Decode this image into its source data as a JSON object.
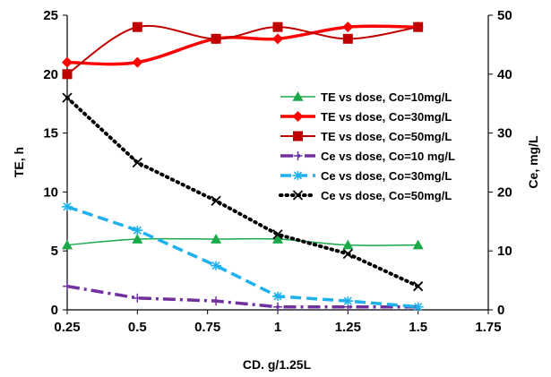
{
  "chart_data": {
    "type": "line",
    "xlabel": "CD. g/1.25L",
    "ylabel": "TE, h",
    "y2label": "Ce, mg/L",
    "xlim": [
      0.25,
      1.75
    ],
    "ylim": [
      0,
      25
    ],
    "y2lim": [
      0,
      50
    ],
    "xticks": [
      "0.25",
      "0.5",
      "0.75",
      "1",
      "1.25",
      "1.5",
      "1.75"
    ],
    "yticks": [
      "0",
      "5",
      "10",
      "15",
      "20",
      "25"
    ],
    "y2ticks": [
      "0",
      "10",
      "20",
      "30",
      "40",
      "50"
    ],
    "legend_position": "center-right",
    "series": [
      {
        "name": "TE vs dose, Co=10mg/L",
        "axis": "left",
        "color": "#1aaa4a",
        "line": "smooth-thin",
        "marker": "triangle",
        "x": [
          0.25,
          0.5,
          0.78,
          1.0,
          1.25,
          1.5
        ],
        "y": [
          5.5,
          6.0,
          6.0,
          6.0,
          5.5,
          5.5
        ]
      },
      {
        "name": "TE vs dose, Co=30mg/L",
        "axis": "left",
        "color": "#ff0000",
        "line": "smooth-thick",
        "marker": "diamond",
        "x": [
          0.25,
          0.5,
          0.78,
          1.0,
          1.25,
          1.5
        ],
        "y": [
          21,
          21,
          23,
          23,
          24,
          24
        ]
      },
      {
        "name": "TE vs dose, Co=50mg/L",
        "axis": "left",
        "color": "#c00000",
        "line": "smooth-medium",
        "marker": "square",
        "x": [
          0.25,
          0.5,
          0.78,
          1.0,
          1.25,
          1.5
        ],
        "y": [
          20,
          24,
          23,
          24,
          23,
          24
        ]
      },
      {
        "name": "Ce vs dose, Co=10 mg/L",
        "axis": "right",
        "color": "#7030a0",
        "line": "dashdot",
        "marker": "plus",
        "x": [
          0.25,
          0.5,
          0.78,
          1.0,
          1.25,
          1.5
        ],
        "y": [
          4.0,
          2.0,
          1.5,
          0.5,
          0.5,
          0.5
        ]
      },
      {
        "name": "Ce vs dose, Co=30mg/L",
        "axis": "right",
        "color": "#1fb1ec",
        "line": "dashed",
        "marker": "asterisk",
        "x": [
          0.25,
          0.5,
          0.78,
          1.0,
          1.25,
          1.5
        ],
        "y": [
          17.5,
          13.5,
          7.5,
          2.3,
          1.5,
          0.5
        ]
      },
      {
        "name": "Ce vs dose, Co=50mg/L",
        "axis": "right",
        "color": "#000000",
        "line": "dotted",
        "marker": "x",
        "x": [
          0.25,
          0.5,
          0.78,
          1.0,
          1.25,
          1.5
        ],
        "y": [
          36,
          25,
          18.5,
          12.8,
          9.5,
          4.0
        ]
      }
    ]
  }
}
